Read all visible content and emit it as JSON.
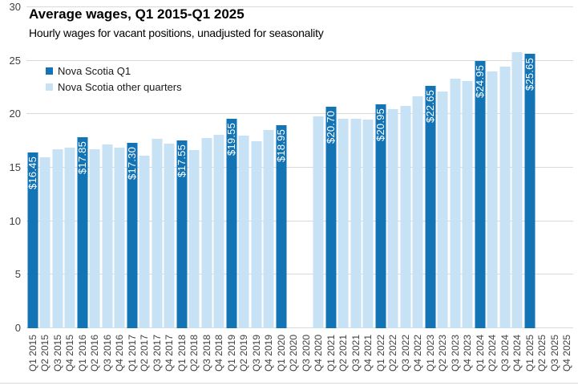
{
  "chart_data": {
    "type": "bar",
    "title": "Average wages, Q1 2015-Q1 2025",
    "subtitle": "Hourly wages for vacant positions, unadjusted for seasonality",
    "legend": [
      {
        "label": "Nova Scotia Q1",
        "color": "#1273b5"
      },
      {
        "label": "Nova Scotia other quarters",
        "color": "#c7e2f4"
      }
    ],
    "ylabel": "",
    "xlabel": "",
    "ylim": [
      0,
      30
    ],
    "yticks": [
      0,
      5,
      10,
      15,
      20,
      25,
      30
    ],
    "grid": "horizontal",
    "legend_position": "upper-left-inside",
    "categories": [
      "Q1 2015",
      "Q2 2015",
      "Q3 2015",
      "Q4 2015",
      "Q1 2016",
      "Q2 2016",
      "Q3 2016",
      "Q4 2016",
      "Q1 2017",
      "Q2 2017",
      "Q3 2017",
      "Q4 2017",
      "Q1 2018",
      "Q2 2018",
      "Q3 2018",
      "Q4 2018",
      "Q1 2019",
      "Q2 2019",
      "Q3 2019",
      "Q4 2019",
      "Q1 2020",
      "Q2 2020",
      "Q3 2020",
      "Q4 2020",
      "Q1 2021",
      "Q2 2021",
      "Q3 2021",
      "Q4 2021",
      "Q1 2022",
      "Q2 2022",
      "Q3 2022",
      "Q4 2022",
      "Q1 2023",
      "Q2 2023",
      "Q3 2023",
      "Q4 2023",
      "Q1 2024",
      "Q2 2024",
      "Q3 2024",
      "Q4 2024",
      "Q1 2025",
      "Q2 2025",
      "Q3 2025",
      "Q4 2025"
    ],
    "values": [
      16.45,
      16.0,
      16.75,
      16.9,
      17.85,
      16.7,
      17.2,
      16.9,
      17.3,
      16.1,
      17.7,
      17.25,
      17.55,
      16.65,
      17.75,
      18.05,
      19.55,
      18.0,
      17.45,
      18.5,
      18.95,
      null,
      null,
      19.8,
      20.7,
      19.6,
      19.6,
      19.5,
      20.95,
      20.45,
      20.75,
      21.7,
      22.65,
      22.1,
      23.3,
      23.1,
      24.95,
      24.0,
      24.45,
      25.8,
      25.65,
      null,
      null,
      null
    ],
    "value_labels": [
      "$16.45",
      null,
      null,
      null,
      "$17.85",
      null,
      null,
      null,
      "$17.30",
      null,
      null,
      null,
      "$17.55",
      null,
      null,
      null,
      "$19.55",
      null,
      null,
      null,
      "$18.95",
      null,
      null,
      null,
      "$20.70",
      null,
      null,
      null,
      "$20.95",
      null,
      null,
      null,
      "$22.65",
      null,
      null,
      null,
      "$24.95",
      null,
      null,
      null,
      "$25.65",
      null,
      null,
      null
    ],
    "colors": {
      "q1_bar": "#1273b5",
      "other_bar": "#c7e2f4",
      "gridline": "#d9d9d9",
      "tick_text": "#404040",
      "bar_label_text": "#ffffff"
    }
  }
}
